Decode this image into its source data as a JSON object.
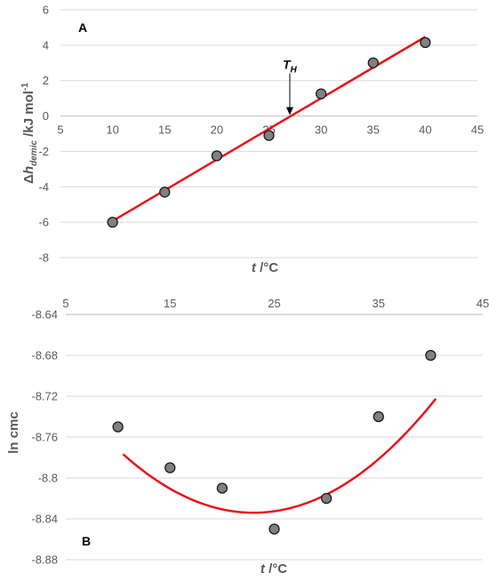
{
  "colors": {
    "fit": "#e8141b",
    "marker_fill": "#808080",
    "marker_stroke": "#1a1a1a",
    "grid": "#d9d9d9",
    "axis": "#bfbfbf",
    "text": "#595959"
  },
  "chart_data": [
    {
      "type": "scatter",
      "panel_label": "A",
      "x_title_italic": "t",
      "x_title_rest": " /°C",
      "y_title_prefix": "Δ",
      "y_title_italic": "h",
      "y_title_sub": "demic",
      "y_title_rest": " /kJ mol",
      "y_title_sup": "-1",
      "xlim": [
        5,
        45
      ],
      "ylim": [
        -8,
        6
      ],
      "x_ticks": [
        "5",
        "10",
        "15",
        "20",
        "25",
        "30",
        "35",
        "40",
        "45"
      ],
      "y_ticks": [
        "6",
        "4",
        "2",
        "0",
        "-2",
        "-4",
        "-6",
        "-8"
      ],
      "x_axis_at": "y = 0",
      "grid": "horizontal",
      "series": [
        {
          "x": [
            10,
            15,
            20,
            25,
            30,
            35,
            40
          ],
          "y": [
            -6.0,
            -4.3,
            -2.25,
            -1.1,
            1.25,
            3.0,
            4.15
          ]
        }
      ],
      "fit": {
        "kind": "linear",
        "x0": 10,
        "y0": -5.93,
        "x1": 40,
        "y1": 4.47
      },
      "annotation": {
        "text_italic": "T",
        "text_sub": "H",
        "x": 27.0,
        "y": 0
      }
    },
    {
      "type": "scatter",
      "panel_label": "B",
      "x_title_italic": "t",
      "x_title_rest": " /°C",
      "y_title": "ln cmc",
      "xlim": [
        5,
        45
      ],
      "ylim": [
        -8.88,
        -8.64
      ],
      "x_ticks": [
        "5",
        "15",
        "25",
        "35",
        "45"
      ],
      "y_ticks": [
        "-8.64",
        "-8.68",
        "-8.72",
        "-8.76",
        "-8.8",
        "-8.84",
        "-8.88"
      ],
      "x_axis_at": "top",
      "grid": "horizontal",
      "series": [
        {
          "x": [
            10,
            15,
            20,
            25,
            30,
            35,
            40
          ],
          "y": [
            -8.75,
            -8.79,
            -8.81,
            -8.85,
            -8.82,
            -8.74,
            -8.68
          ]
        }
      ],
      "fit": {
        "kind": "quadratic",
        "x_start": 10.5,
        "x_end": 40.5,
        "coef": [
          -8.6405,
          -0.016815,
          0.00036524
        ]
      }
    }
  ]
}
